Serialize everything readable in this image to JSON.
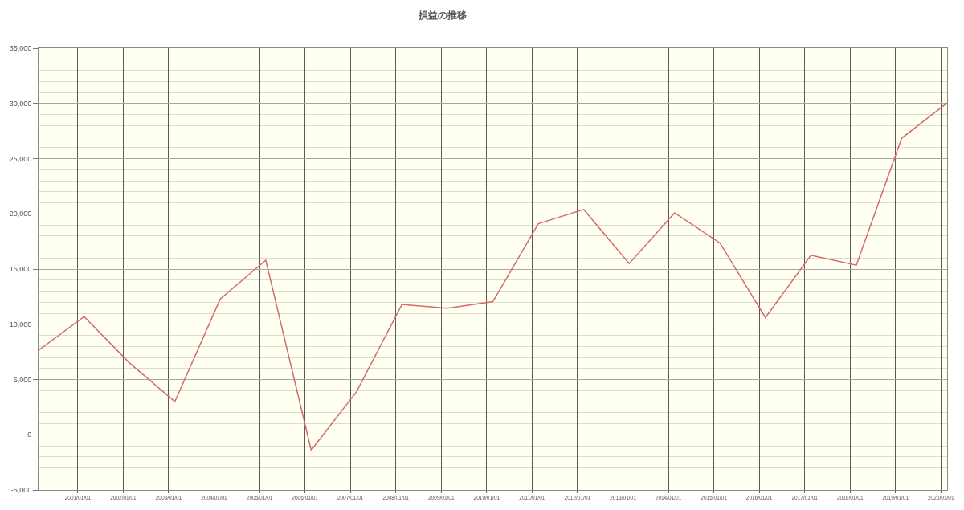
{
  "chart_data": {
    "type": "line",
    "title": "損益の推移",
    "x": [
      "2000-02-20",
      "2001-02-20",
      "2002-02-20",
      "2003-02-20",
      "2004-02-20",
      "2005-02-20",
      "2006-02-20",
      "2007-02-20",
      "2008-02-20",
      "2009-02-20",
      "2010-02-20",
      "2011-02-20",
      "2012-02-20",
      "2013-02-20",
      "2014-02-20",
      "2015-02-20",
      "2016-02-20",
      "2017-02-20",
      "2018-02-20",
      "2019-02-20",
      "2020-02-20"
    ],
    "series": [
      {
        "color": "#d46a6a",
        "values": [
          7650,
          10700,
          6500,
          3000,
          12300,
          15800,
          -1400,
          3900,
          11800,
          11450,
          12050,
          19100,
          20400,
          15500,
          20100,
          17350,
          10600,
          16250,
          15350,
          26850,
          30050
        ]
      }
    ],
    "xlim": [
      "2000-02-20",
      "2020-02-20"
    ],
    "xticks": [
      {
        "value": "2001-01-01",
        "label": "2001/01/01"
      },
      {
        "value": "2002-01-01",
        "label": "2002/01/01"
      },
      {
        "value": "2003-01-01",
        "label": "2003/01/01"
      },
      {
        "value": "2004-01-01",
        "label": "2004/01/01"
      },
      {
        "value": "2005-01-01",
        "label": "2005/01/01"
      },
      {
        "value": "2006-01-01",
        "label": "2006/01/01"
      },
      {
        "value": "2007-01-01",
        "label": "2007/01/01"
      },
      {
        "value": "2008-01-01",
        "label": "2008/01/01"
      },
      {
        "value": "2009-01-01",
        "label": "2009/01/01"
      },
      {
        "value": "2010-01-01",
        "label": "2010/01/01"
      },
      {
        "value": "2011-01-01",
        "label": "2011/01/01"
      },
      {
        "value": "2012-01-01",
        "label": "2012/01/01"
      },
      {
        "value": "2013-01-01",
        "label": "2013/01/01"
      },
      {
        "value": "2014-01-01",
        "label": "2014/01/01"
      },
      {
        "value": "2015-01-01",
        "label": "2015/01/01"
      },
      {
        "value": "2016-01-01",
        "label": "2016/01/01"
      },
      {
        "value": "2017-01-01",
        "label": "2017/01/01"
      },
      {
        "value": "2018-01-01",
        "label": "2018/01/01"
      },
      {
        "value": "2019-01-01",
        "label": "2019/01/01"
      },
      {
        "value": "2020-01-01",
        "label": "2020/01/01"
      }
    ],
    "ylim": [
      -5000,
      35000
    ],
    "yticks": [
      {
        "value": -5000,
        "label": "-5,000"
      },
      {
        "value": -4000,
        "label": null
      },
      {
        "value": -3000,
        "label": null
      },
      {
        "value": -2000,
        "label": null
      },
      {
        "value": -1000,
        "label": null
      },
      0,
      {
        "value": 1000,
        "label": null
      },
      {
        "value": 2000,
        "label": null
      },
      {
        "value": 3000,
        "label": null
      },
      {
        "value": 4000,
        "label": null
      },
      {
        "value": 5000,
        "label": "5,000"
      },
      {
        "value": 6000,
        "label": null
      },
      {
        "value": 7000,
        "label": null
      },
      {
        "value": 8000,
        "label": null
      },
      {
        "value": 9000,
        "label": null
      },
      {
        "value": 10000,
        "label": "10,000"
      },
      {
        "value": 11000,
        "label": null
      },
      {
        "value": 12000,
        "label": null
      },
      {
        "value": 13000,
        "label": null
      },
      {
        "value": 14000,
        "label": null
      },
      {
        "value": 15000,
        "label": "15,000"
      },
      {
        "value": 16000,
        "label": null
      },
      {
        "value": 17000,
        "label": null
      },
      {
        "value": 18000,
        "label": null
      },
      {
        "value": 19000,
        "label": null
      },
      {
        "value": 20000,
        "label": "20,000"
      },
      {
        "value": 21000,
        "label": null
      },
      {
        "value": 22000,
        "label": null
      },
      {
        "value": 23000,
        "label": null
      },
      {
        "value": 24000,
        "label": null
      },
      {
        "value": 25000,
        "label": "25,000"
      },
      {
        "value": 26000,
        "label": null
      },
      {
        "value": 27000,
        "label": null
      },
      {
        "value": 28000,
        "label": null
      },
      {
        "value": 29000,
        "label": null
      },
      {
        "value": 30000,
        "label": "30,000"
      },
      {
        "value": 31000,
        "label": null
      },
      {
        "value": 32000,
        "label": null
      },
      {
        "value": 33000,
        "label": null
      },
      {
        "value": 34000,
        "label": null
      },
      {
        "value": 35000,
        "label": "35,000"
      }
    ],
    "grid": true,
    "marker": "none",
    "line_style": "solid"
  }
}
